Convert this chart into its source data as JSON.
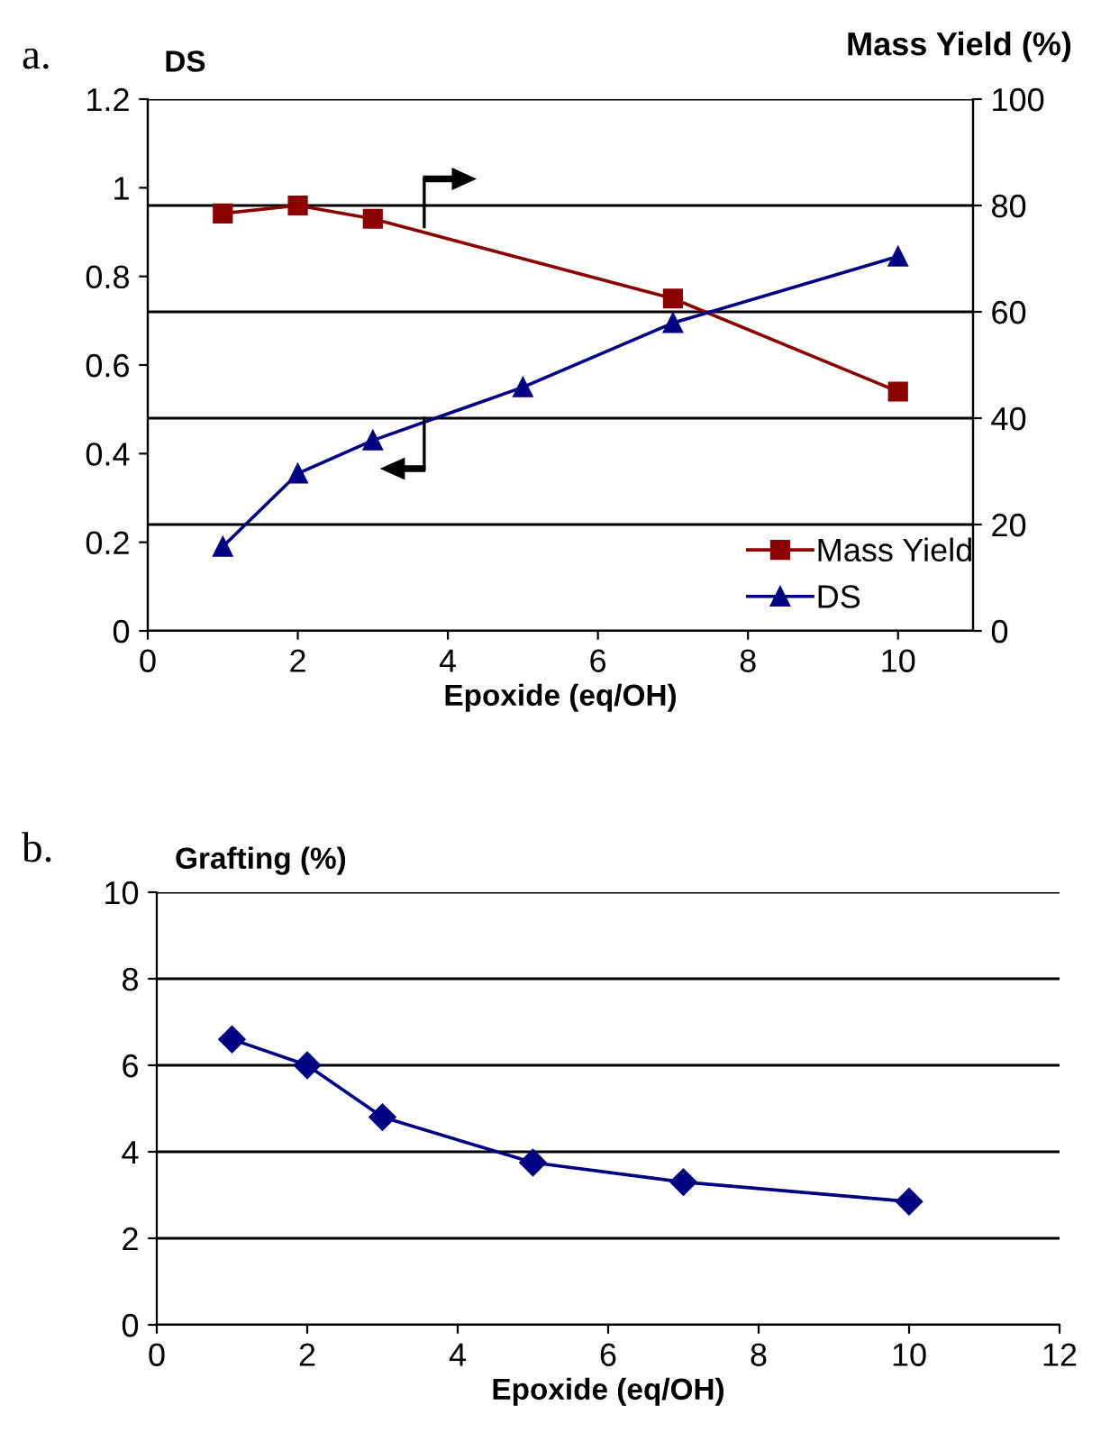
{
  "chart_data": [
    {
      "type": "line",
      "xlabel": "Epoxide (eq/OH)",
      "ylabel": "DS",
      "y2label": "Mass Yield (%)",
      "annotations": [
        "a."
      ],
      "x": [
        1,
        2,
        3,
        5,
        7,
        10
      ],
      "series": [
        {
          "name": "Mass Yield",
          "color": "#8b0000",
          "axis": "y2",
          "marker": "square",
          "x": [
            1,
            2,
            3,
            7,
            10
          ],
          "values": [
            78.5,
            80,
            77.5,
            62.5,
            45
          ]
        },
        {
          "name": "DS",
          "color": "#000080",
          "marker": "triangle",
          "values": [
            0.19,
            0.355,
            0.43,
            0.55,
            0.695,
            0.845
          ]
        }
      ],
      "xlim": [
        0,
        11
      ],
      "xticks": [
        0,
        2,
        4,
        6,
        8,
        10
      ],
      "ylim": [
        0,
        1.2
      ],
      "yticks": [
        0,
        0.2,
        0.4,
        0.6,
        0.8,
        1,
        1.2
      ],
      "y2lim": [
        0,
        100
      ],
      "y2ticks": [
        0,
        20,
        40,
        60,
        80,
        100
      ],
      "grid": "y2",
      "legend": "bottom right",
      "line_style": "solid"
    },
    {
      "type": "line",
      "xlabel": "Epoxide (eq/OH)",
      "ylabel": "Grafting (%)",
      "annotations": [
        "b."
      ],
      "x": [
        1,
        2,
        3,
        5,
        7,
        10
      ],
      "series": [
        {
          "color": "#000080",
          "marker": "diamond",
          "values": [
            6.6,
            6.0,
            4.8,
            3.75,
            3.3,
            2.85
          ]
        }
      ],
      "xlim": [
        0,
        12
      ],
      "xticks": [
        0,
        2,
        4,
        6,
        8,
        10,
        12
      ],
      "ylim": [
        0,
        10
      ],
      "yticks": [
        0,
        2,
        4,
        6,
        8,
        10
      ],
      "grid": "y",
      "legend": false,
      "line_style": "solid"
    }
  ]
}
